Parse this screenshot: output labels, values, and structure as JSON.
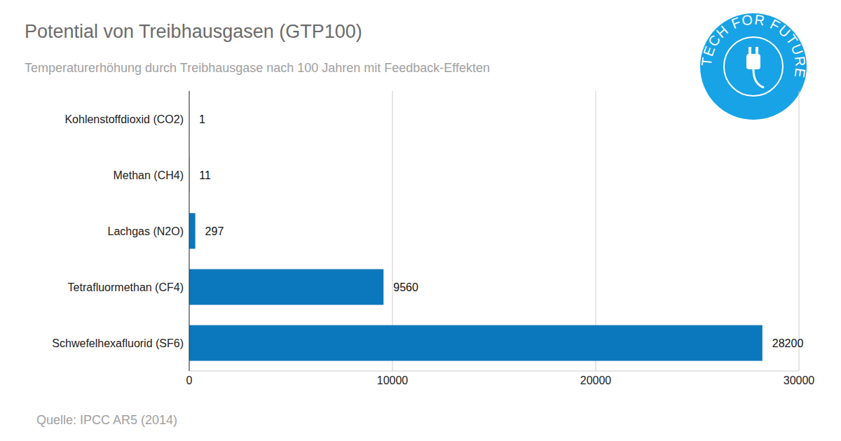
{
  "chart_data": {
    "type": "bar",
    "title": "Potential von Treibhausgasen (GTP100)",
    "subtitle": "Temperaturerhöhung durch Treibhausgase nach 100 Jahren mit Feedback-Effekten",
    "source": "Quelle: IPCC AR5 (2014)",
    "annotations": [
      "TECH FOR FUTURE"
    ],
    "categories": [
      "Kohlenstoffdioxid (CO2)",
      "Methan (CH4)",
      "Lachgas (N2O)",
      "Tetrafluormethan (CF4)",
      "Schwefelhexafluorid (SF6)"
    ],
    "values": [
      1,
      11,
      297,
      9560,
      28200
    ],
    "color": "#0b77bd",
    "xlim": [
      0,
      30000
    ],
    "xticks": [
      0,
      10000,
      20000,
      30000
    ],
    "grid": true,
    "orientation": "horizontal",
    "data_labels": true
  }
}
